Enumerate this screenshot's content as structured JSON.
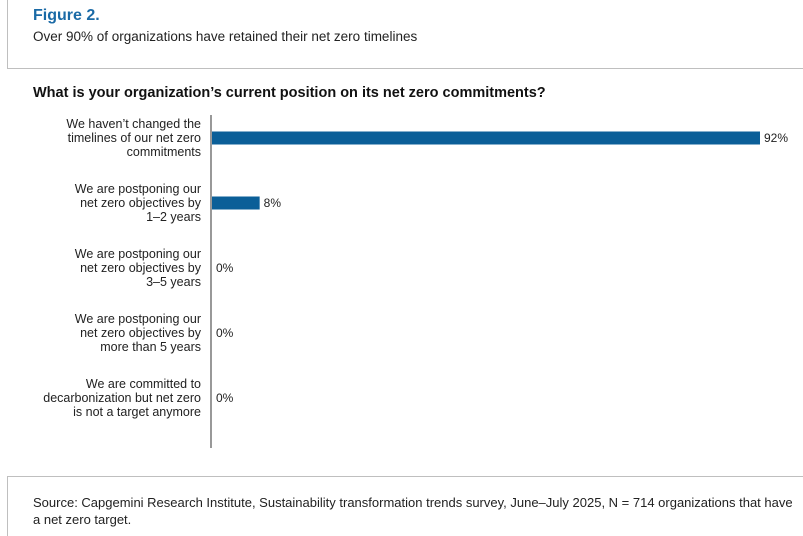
{
  "figure": {
    "label": "Figure 2.",
    "subtitle": "Over 90% of organizations have retained their net zero timelines"
  },
  "question": "What is your organization’s current position on its net zero commitments?",
  "source": "Source: Capgemini Research Institute, Sustainability transformation trends survey, June–July 2025, N = 714 organizations that have a net zero target.",
  "colors": {
    "bar": "#0b5f98",
    "axis": "#555555"
  },
  "chart_data": {
    "type": "bar",
    "orientation": "horizontal",
    "categories": [
      [
        "We haven’t changed the",
        "timelines of our net zero",
        "commitments"
      ],
      [
        "We are postponing our",
        "net zero objectives by",
        "1–2 years"
      ],
      [
        "We are postponing our",
        "net zero objectives by",
        "3–5 years"
      ],
      [
        "We are postponing our",
        "net zero objectives by",
        "more than 5 years"
      ],
      [
        "We are committed to",
        "decarbonization but net zero",
        "is not a target anymore"
      ]
    ],
    "values": [
      92,
      8,
      0,
      0,
      0
    ],
    "value_labels": [
      "92%",
      "8%",
      "0%",
      "0%",
      "0%"
    ],
    "xlim": [
      0,
      92
    ],
    "grid": false
  }
}
